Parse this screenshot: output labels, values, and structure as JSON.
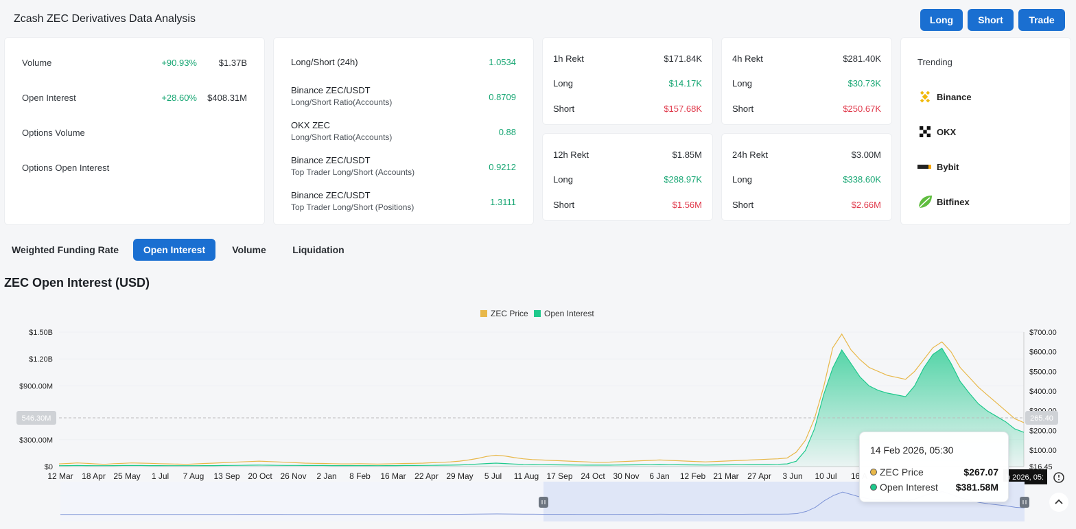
{
  "header": {
    "title": "Zcash ZEC Derivatives Data Analysis",
    "buttons": {
      "long": "Long",
      "short": "Short",
      "trade": "Trade"
    }
  },
  "overview": {
    "rows": [
      {
        "label": "Volume",
        "change": "+90.93%",
        "value": "$1.37B"
      },
      {
        "label": "Open Interest",
        "change": "+28.60%",
        "value": "$408.31M"
      },
      {
        "label": "Options Volume",
        "change": "",
        "value": ""
      },
      {
        "label": "Options Open Interest",
        "change": "",
        "value": ""
      }
    ]
  },
  "ratios": {
    "rows": [
      {
        "label": "Long/Short (24h)",
        "sub": "",
        "value": "1.0534"
      },
      {
        "label": "Binance ZEC/USDT",
        "sub": "Long/Short Ratio(Accounts)",
        "value": "0.8709"
      },
      {
        "label": "OKX ZEC",
        "sub": "Long/Short Ratio(Accounts)",
        "value": "0.88"
      },
      {
        "label": "Binance ZEC/USDT",
        "sub": "Top Trader Long/Short (Accounts)",
        "value": "0.9212"
      },
      {
        "label": "Binance ZEC/USDT",
        "sub": "Top Trader Long/Short (Positions)",
        "value": "1.3111"
      }
    ]
  },
  "rekt": [
    {
      "title": "1h Rekt",
      "total": "$171.84K",
      "long_label": "Long",
      "long": "$14.17K",
      "short_label": "Short",
      "short": "$157.68K"
    },
    {
      "title": "4h Rekt",
      "total": "$281.40K",
      "long_label": "Long",
      "long": "$30.73K",
      "short_label": "Short",
      "short": "$250.67K"
    },
    {
      "title": "12h Rekt",
      "total": "$1.85M",
      "long_label": "Long",
      "long": "$288.97K",
      "short_label": "Short",
      "short": "$1.56M"
    },
    {
      "title": "24h Rekt",
      "total": "$3.00M",
      "long_label": "Long",
      "long": "$338.60K",
      "short_label": "Short",
      "short": "$2.66M"
    }
  ],
  "trending": {
    "title": "Trending",
    "items": [
      "Binance",
      "OKX",
      "Bybit",
      "Bitfinex"
    ],
    "icons": [
      "binance-icon",
      "okx-icon",
      "bybit-icon",
      "bitfinex-icon"
    ]
  },
  "tabs": [
    "Weighted Funding Rate",
    "Open Interest",
    "Volume",
    "Liquidation"
  ],
  "active_tab": "Open Interest",
  "colors": {
    "accent": "#1a6fd1",
    "price": "#e8b84a",
    "oi": "#1ec98c",
    "up": "#17a673",
    "down": "#e0384a"
  },
  "chart_data": {
    "type": "area",
    "title": "ZEC Open Interest (USD)",
    "legend": [
      "ZEC Price",
      "Open Interest"
    ],
    "legend_placement": "top-center",
    "x_ticks": [
      "12 Mar",
      "18 Apr",
      "25 May",
      "1 Jul",
      "7 Aug",
      "13 Sep",
      "20 Oct",
      "26 Nov",
      "2 Jan",
      "8 Feb",
      "16 Mar",
      "22 Apr",
      "29 May",
      "5 Jul",
      "11 Aug",
      "17 Sep",
      "24 Oct",
      "30 Nov",
      "6 Jan",
      "12 Feb",
      "21 Mar",
      "27 Apr",
      "3 Jun",
      "10 Jul",
      "16 A"
    ],
    "left_axis": {
      "ticks": [
        "$0",
        "$300.00M",
        "$900.00M",
        "$1.20B",
        "$1.50B"
      ],
      "values": [
        0,
        300,
        900,
        1200,
        1500
      ],
      "unit": "M USD"
    },
    "right_axis": {
      "ticks": [
        "$16.45",
        "$100.00",
        "$200.00",
        "$300.00",
        "$400.00",
        "$500.00",
        "$600.00",
        "$700.00"
      ],
      "values": [
        16.45,
        100,
        200,
        300,
        400,
        500,
        600,
        700
      ]
    },
    "crosshair": {
      "left_label": "546.30M",
      "right_label": "265.40",
      "date_label": "b 2026, 05:"
    },
    "series": [
      {
        "name": "ZEC Price",
        "values": [
          30,
          32,
          35,
          33,
          30,
          28,
          31,
          33,
          35,
          34,
          33,
          31,
          30,
          29,
          28,
          30,
          32,
          34,
          36,
          38,
          40,
          42,
          44,
          42,
          40,
          38,
          36,
          34,
          33,
          32,
          31,
          30,
          30,
          31,
          30,
          29,
          30,
          31,
          32,
          33,
          34,
          36,
          38,
          40,
          44,
          50,
          58,
          68,
          74,
          70,
          62,
          56,
          52,
          50,
          48,
          46,
          44,
          42,
          40,
          38,
          38,
          40,
          42,
          44,
          46,
          48,
          50,
          48,
          46,
          44,
          42,
          40,
          42,
          44,
          46,
          48,
          50,
          52,
          54,
          56,
          60,
          90,
          150,
          260,
          420,
          620,
          690,
          610,
          560,
          520,
          500,
          480,
          470,
          460,
          500,
          560,
          620,
          650,
          600,
          520,
          470,
          420,
          380,
          340,
          300,
          260,
          240
        ]
      },
      {
        "name": "Open Interest",
        "values": [
          10,
          11,
          12,
          11,
          10,
          10,
          11,
          12,
          12,
          12,
          11,
          11,
          10,
          10,
          10,
          10,
          11,
          11,
          12,
          13,
          14,
          15,
          16,
          15,
          14,
          13,
          13,
          12,
          12,
          12,
          11,
          11,
          11,
          11,
          11,
          10,
          11,
          11,
          12,
          12,
          13,
          14,
          15,
          16,
          18,
          22,
          28,
          34,
          38,
          34,
          28,
          24,
          22,
          21,
          20,
          19,
          18,
          17,
          16,
          16,
          16,
          17,
          18,
          19,
          20,
          21,
          22,
          21,
          20,
          19,
          18,
          17,
          18,
          19,
          20,
          21,
          22,
          23,
          24,
          25,
          30,
          60,
          180,
          420,
          800,
          1100,
          1300,
          1150,
          1000,
          900,
          850,
          820,
          800,
          780,
          900,
          1100,
          1250,
          1320,
          1150,
          950,
          820,
          700,
          620,
          560,
          500,
          420,
          382
        ]
      }
    ],
    "tooltip": {
      "date": "14 Feb 2026, 05:30",
      "rows": [
        {
          "label": "ZEC Price",
          "value": "$267.07"
        },
        {
          "label": "Open Interest",
          "value": "$381.58M"
        }
      ]
    }
  }
}
